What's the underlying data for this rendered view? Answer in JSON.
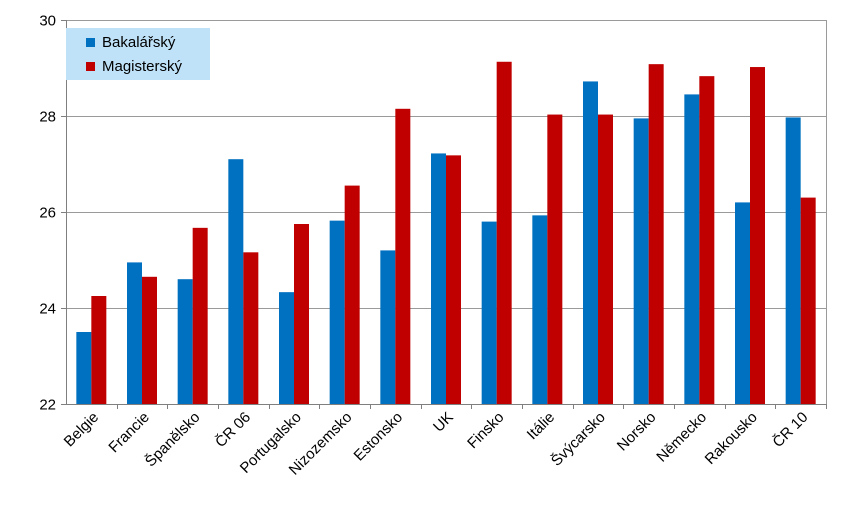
{
  "chart_data": {
    "type": "bar",
    "categories": [
      "Belgie",
      "Francie",
      "Španělsko",
      "ČR 06",
      "Portugalsko",
      "Nizozemsko",
      "Estonsko",
      "UK",
      "Finsko",
      "Itálie",
      "Švýcarsko",
      "Norsko",
      "Německo",
      "Rakousko",
      "ČR 10"
    ],
    "series": [
      {
        "name": "Bakalářský",
        "color": "#0070c0",
        "values": [
          23.5,
          24.95,
          24.6,
          27.1,
          24.33,
          25.82,
          25.2,
          27.22,
          25.8,
          25.93,
          28.72,
          27.95,
          28.45,
          26.2,
          27.97
        ]
      },
      {
        "name": "Magisterský",
        "color": "#c00000",
        "values": [
          24.25,
          24.65,
          25.67,
          25.16,
          25.75,
          26.55,
          28.15,
          27.18,
          29.13,
          28.03,
          28.03,
          29.08,
          28.83,
          29.02,
          26.3
        ]
      }
    ],
    "ylim": [
      22,
      30
    ],
    "yticks": [
      22,
      24,
      26,
      28,
      30
    ],
    "grid": true,
    "legend_position": "top-left",
    "legend_background": "#bfe2f8",
    "title": "",
    "xlabel": "",
    "ylabel": ""
  }
}
